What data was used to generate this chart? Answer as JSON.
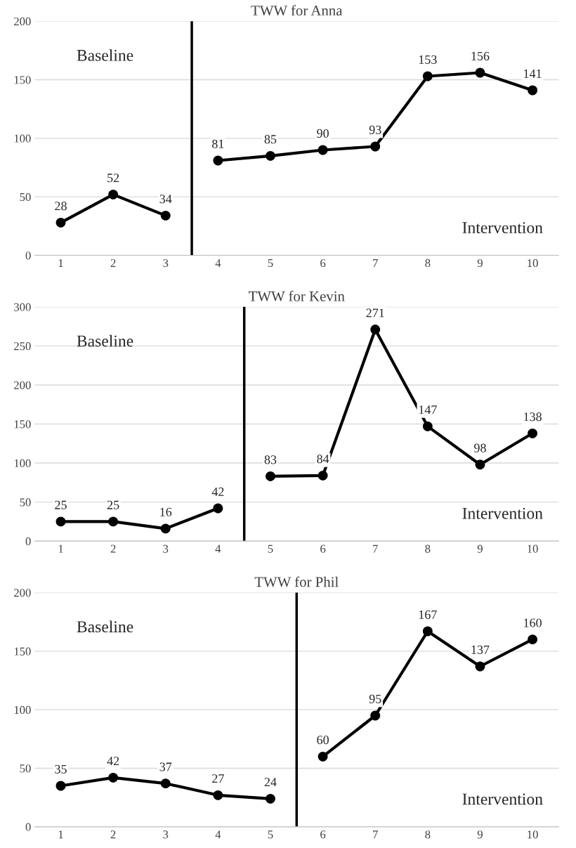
{
  "chart_data": [
    {
      "type": "line",
      "title": "TWW for Anna",
      "xlim": [
        0.5,
        10.5
      ],
      "xticks": [
        1,
        2,
        3,
        4,
        5,
        6,
        7,
        8,
        9,
        10
      ],
      "ylim": [
        0,
        200
      ],
      "yticks": [
        0,
        50,
        100,
        150,
        200
      ],
      "grid": "y",
      "marker": "circle",
      "line_style": "solid",
      "data_labels": true,
      "series": [
        {
          "color": "#000000",
          "x": [
            1,
            2,
            3
          ],
          "values": [
            28,
            52,
            34
          ]
        },
        {
          "color": "#000000",
          "x": [
            4,
            5,
            6,
            7,
            8,
            9,
            10
          ],
          "values": [
            81,
            85,
            90,
            93,
            153,
            156,
            141
          ]
        }
      ],
      "ref_lines": [
        {
          "axis": "x",
          "value": 3.5,
          "color": "#000000"
        }
      ],
      "annotations": [
        "Baseline",
        "Intervention"
      ]
    },
    {
      "type": "line",
      "title": "TWW for Kevin",
      "xlim": [
        0.5,
        10.5
      ],
      "xticks": [
        1,
        2,
        3,
        4,
        5,
        6,
        7,
        8,
        9,
        10
      ],
      "ylim": [
        0,
        300
      ],
      "yticks": [
        0,
        50,
        100,
        150,
        200,
        250,
        300
      ],
      "grid": "y",
      "marker": "circle",
      "line_style": "solid",
      "data_labels": true,
      "series": [
        {
          "color": "#000000",
          "x": [
            1,
            2,
            3,
            4
          ],
          "values": [
            25,
            25,
            16,
            42
          ]
        },
        {
          "color": "#000000",
          "x": [
            5,
            6,
            7,
            8,
            9,
            10
          ],
          "values": [
            83,
            84,
            271,
            147,
            98,
            138
          ]
        }
      ],
      "ref_lines": [
        {
          "axis": "x",
          "value": 4.5,
          "color": "#000000"
        }
      ],
      "annotations": [
        "Baseline",
        "Intervention"
      ]
    },
    {
      "type": "line",
      "title": "TWW for Phil",
      "xlim": [
        0.5,
        10.5
      ],
      "xticks": [
        1,
        2,
        3,
        4,
        5,
        6,
        7,
        8,
        9,
        10
      ],
      "ylim": [
        0,
        200
      ],
      "yticks": [
        0,
        50,
        100,
        150,
        200
      ],
      "grid": "y",
      "marker": "circle",
      "line_style": "solid",
      "data_labels": true,
      "series": [
        {
          "color": "#000000",
          "x": [
            1,
            2,
            3,
            4,
            5
          ],
          "values": [
            35,
            42,
            37,
            27,
            24
          ]
        },
        {
          "color": "#000000",
          "x": [
            6,
            7,
            8,
            9,
            10
          ],
          "values": [
            60,
            95,
            167,
            137,
            160
          ]
        }
      ],
      "ref_lines": [
        {
          "axis": "x",
          "value": 5.5,
          "color": "#000000"
        }
      ],
      "annotations": [
        "Baseline",
        "Intervention"
      ]
    }
  ]
}
